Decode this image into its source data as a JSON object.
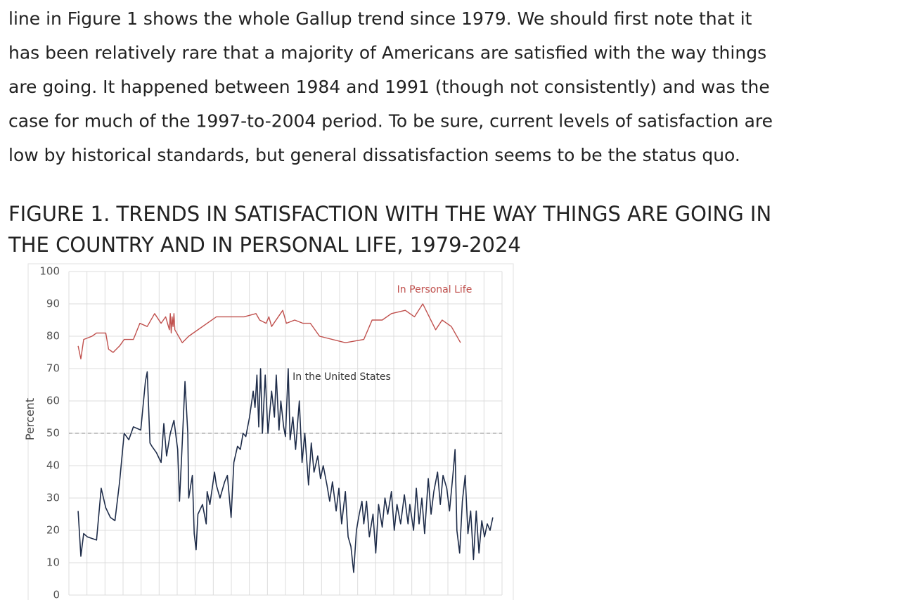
{
  "paragraph_lines": [
    "line in Figure 1 shows the whole Gallup trend since 1979. We should first note that it",
    "has been relatively rare that a majority of Americans are satisfied with the way things",
    "are going. It happened between 1984 and 1991 (though not consistently) and was the",
    "case for much of the 1997-to-2004 period. To be sure, current levels of satisfaction are",
    "low by historical standards, but general dissatisfaction seems to be the status quo."
  ],
  "figure_title_lines": [
    "FIGURE 1. TRENDS IN SATISFACTION WITH THE WAY THINGS ARE GOING IN",
    "THE COUNTRY AND IN PERSONAL LIFE, 1979-2024"
  ],
  "chart_data": {
    "type": "line",
    "ylabel": "Percent",
    "ylim": [
      0,
      100
    ],
    "yticks": [
      0,
      10,
      20,
      30,
      40,
      50,
      60,
      70,
      80,
      90,
      100
    ],
    "xlim": [
      1978,
      2025
    ],
    "grid": true,
    "reference_line": 50,
    "series": [
      {
        "name": "In Personal Life",
        "color": "#c0504d",
        "x": [
          1979,
          1979.3,
          1979.6,
          1980.5,
          1981,
          1982,
          1982.3,
          1982.8,
          1983.5,
          1984,
          1985,
          1985.7,
          1986.5,
          1987.3,
          1988,
          1988.5,
          1988.9,
          1989,
          1989.1,
          1989.2,
          1989.3,
          1989.4,
          1989.5,
          1990.3,
          1991,
          1994,
          1997,
          1998.3,
          1998.7,
          1999.4,
          1999.7,
          2000,
          2001.2,
          2001.6,
          2002.5,
          2003.4,
          2004.2,
          2005.2,
          2008,
          2010,
          2010.9,
          2012,
          2013,
          2014.5,
          2015.5,
          2016.4,
          2017.8,
          2018.5,
          2019.5,
          2020.5
        ],
        "values": [
          77,
          73,
          79,
          80,
          81,
          81,
          76,
          75,
          77,
          79,
          79,
          84,
          83,
          87,
          84,
          86,
          82,
          87,
          81,
          86,
          83,
          87,
          82,
          78,
          80,
          86,
          86,
          87,
          85,
          84,
          86,
          83,
          88,
          84,
          85,
          84,
          84,
          80,
          78,
          79,
          85,
          85,
          87,
          88,
          86,
          90,
          82,
          85,
          83,
          78
        ]
      },
      {
        "name": "In the United States",
        "color": "#1f2d4a",
        "x": [
          1979,
          1979.3,
          1979.6,
          1980,
          1981,
          1981.5,
          1982,
          1982.5,
          1983,
          1983.5,
          1984,
          1984.5,
          1985,
          1985.8,
          1986.3,
          1986.5,
          1986.8,
          1987,
          1987.5,
          1988,
          1988.3,
          1988.6,
          1989,
          1989.4,
          1989.8,
          1990,
          1990.3,
          1990.6,
          1990.9,
          1991,
          1991.4,
          1991.6,
          1991.8,
          1992,
          1992.5,
          1992.9,
          1993,
          1993.3,
          1993.8,
          1994,
          1994.4,
          1994.9,
          1995.2,
          1995.6,
          1995.9,
          1996.3,
          1996.6,
          1996.9,
          1997.2,
          1997.6,
          1998,
          1998.2,
          1998.4,
          1998.6,
          1998.8,
          1999,
          1999.3,
          1999.6,
          2000,
          2000.3,
          2000.5,
          2000.8,
          2001,
          2001.3,
          2001.5,
          2001.8,
          2002,
          2002.3,
          2002.6,
          2003,
          2003.3,
          2003.6,
          2004,
          2004.3,
          2004.6,
          2005,
          2005.3,
          2005.6,
          2006,
          2006.3,
          2006.6,
          2007,
          2007.3,
          2007.6,
          2008,
          2008.3,
          2008.6,
          2008.9,
          2009.2,
          2009.5,
          2009.8,
          2010,
          2010.3,
          2010.6,
          2011,
          2011.3,
          2011.6,
          2012,
          2012.3,
          2012.6,
          2013,
          2013.3,
          2013.6,
          2014,
          2014.4,
          2014.8,
          2015,
          2015.4,
          2015.7,
          2016,
          2016.3,
          2016.6,
          2017,
          2017.3,
          2017.6,
          2018,
          2018.3,
          2018.6,
          2019,
          2019.3,
          2019.7,
          2019.9,
          2020.1,
          2020.4,
          2020.7,
          2021,
          2021.3,
          2021.6,
          2021.9,
          2022.2,
          2022.5,
          2022.8,
          2023.1,
          2023.4,
          2023.7,
          2024
        ],
        "values": [
          26,
          12,
          19,
          18,
          17,
          33,
          27,
          24,
          23,
          35,
          50,
          48,
          52,
          51,
          66,
          69,
          47,
          46,
          44,
          41,
          53,
          43,
          50,
          54,
          45,
          29,
          47,
          66,
          50,
          30,
          37,
          19,
          14,
          25,
          28,
          22,
          32,
          28,
          38,
          34,
          30,
          35,
          37,
          24,
          41,
          46,
          45,
          50,
          49,
          55,
          63,
          58,
          68,
          52,
          70,
          50,
          68,
          50,
          63,
          55,
          68,
          51,
          60,
          52,
          49,
          70,
          48,
          55,
          45,
          60,
          41,
          50,
          34,
          47,
          38,
          43,
          36,
          40,
          34,
          29,
          35,
          26,
          33,
          22,
          32,
          18,
          15,
          7,
          20,
          25,
          29,
          22,
          29,
          18,
          25,
          13,
          28,
          21,
          30,
          25,
          32,
          20,
          28,
          22,
          31,
          22,
          28,
          20,
          33,
          22,
          30,
          19,
          36,
          25,
          32,
          38,
          28,
          37,
          33,
          26,
          38,
          45,
          20,
          13,
          29,
          37,
          19,
          26,
          11,
          26,
          13,
          23,
          18,
          22,
          20,
          24
        ]
      }
    ]
  }
}
